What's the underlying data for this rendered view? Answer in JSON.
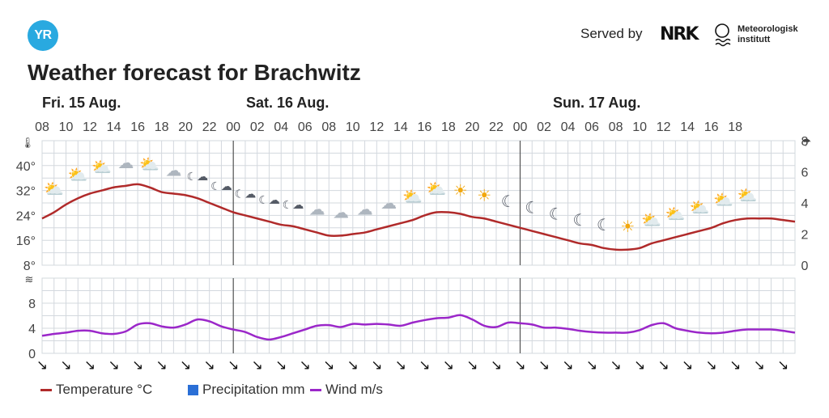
{
  "header": {
    "logo_text": "YR",
    "served_by": "Served by",
    "nrk_logo": "NRK",
    "met_line1": "Meteorologisk",
    "met_line2": "institutt",
    "title": "Weather forecast for Brachwitz"
  },
  "days": [
    "Fri. 15 Aug.",
    "Sat. 16 Aug.",
    "Sun. 17 Aug."
  ],
  "legend": {
    "temperature": "Temperature °C",
    "precipitation": "Precipitation mm",
    "wind": "Wind m/s"
  },
  "colors": {
    "temperature": "#b02a2a",
    "precipitation": "#2a6fd6",
    "wind": "#9b27c9",
    "grid": "#d3d8de",
    "logo": "#29a9e0"
  },
  "chart_data": {
    "type": "line",
    "x_start": "Fri. 15 Aug. 08:00",
    "x_step_hours": 1,
    "hour_ticks": [
      "08",
      "10",
      "12",
      "14",
      "16",
      "18",
      "20",
      "22",
      "00",
      "02",
      "04",
      "06",
      "08",
      "10",
      "12",
      "14",
      "16",
      "18",
      "20",
      "22",
      "00",
      "02",
      "04",
      "06",
      "08",
      "10",
      "12",
      "14",
      "16",
      "18"
    ],
    "temperature": {
      "name": "Temperature °C",
      "ylim": [
        8,
        48
      ],
      "ticks": [
        "8°",
        "16°",
        "24°",
        "32°",
        "40°"
      ],
      "values": [
        23,
        25,
        27.5,
        29.5,
        31,
        32,
        33,
        33.5,
        34,
        33,
        31.5,
        31,
        30.5,
        29.5,
        28,
        26.5,
        25,
        24,
        23,
        22,
        21,
        20.5,
        19.5,
        18.5,
        17.5,
        17.5,
        18,
        18.5,
        19.5,
        20.5,
        21.5,
        22.5,
        24,
        25,
        25,
        24.5,
        23.5,
        23,
        22,
        21,
        20,
        19,
        18,
        17,
        16,
        15,
        14.5,
        13.5,
        13,
        13,
        13.5,
        15,
        16,
        17,
        18,
        19,
        20,
        21.5,
        22.5,
        23,
        23,
        23,
        22.5,
        22
      ]
    },
    "precipitation": {
      "name": "Precipitation mm",
      "ylim": [
        0,
        8
      ],
      "ticks": [
        "0",
        "2",
        "4",
        "6",
        "8"
      ],
      "values": []
    },
    "wind": {
      "name": "Wind m/s",
      "ylim": [
        0,
        12
      ],
      "ticks": [
        "0",
        "4",
        "8"
      ],
      "values": [
        2.8,
        3.1,
        3.3,
        3.6,
        3.6,
        3.2,
        3.1,
        3.5,
        4.6,
        4.8,
        4.3,
        4.1,
        4.6,
        5.4,
        5.1,
        4.3,
        3.8,
        3.4,
        2.6,
        2.2,
        2.6,
        3.2,
        3.8,
        4.4,
        4.5,
        4.2,
        4.7,
        4.6,
        4.7,
        4.6,
        4.4,
        4.9,
        5.3,
        5.6,
        5.7,
        6.1,
        5.4,
        4.4,
        4.2,
        4.9,
        4.8,
        4.6,
        4.1,
        4.1,
        3.9,
        3.6,
        3.4,
        3.3,
        3.3,
        3.3,
        3.7,
        4.5,
        4.8,
        4.0,
        3.6,
        3.3,
        3.2,
        3.3,
        3.6,
        3.8,
        3.8,
        3.8,
        3.6,
        3.3
      ]
    },
    "weather_symbols": [
      "partly-cloudy-day",
      "partly-cloudy-day",
      "partly-cloudy-day",
      "cloudy",
      "partly-cloudy-day",
      "cloudy",
      "partly-cloudy-night",
      "partly-cloudy-night",
      "partly-cloudy-night",
      "partly-cloudy-night",
      "partly-cloudy-night",
      "cloudy",
      "cloudy",
      "cloudy",
      "cloudy",
      "partly-cloudy-day",
      "partly-cloudy-day",
      "clear-day",
      "clear-day",
      "clear-night",
      "clear-night",
      "clear-night",
      "clear-night",
      "clear-night",
      "clear-day",
      "partly-cloudy-day",
      "partly-cloudy-day",
      "partly-cloudy-day",
      "partly-cloudy-day",
      "partly-cloudy-day"
    ],
    "wind_direction_symbols": "↘",
    "grid": true,
    "legend_position": "bottom-left"
  }
}
